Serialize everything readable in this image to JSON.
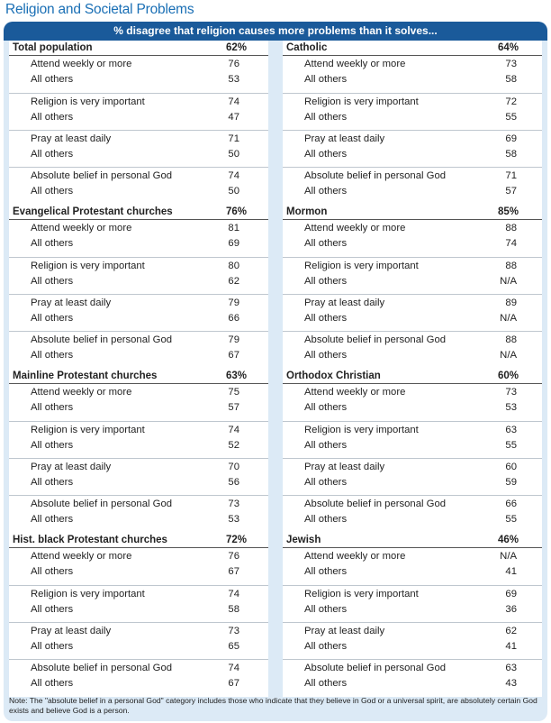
{
  "title": "Religion and Societal Problems",
  "header": "% disagree that religion causes more problems than it solves...",
  "left": [
    {
      "name": "Total population",
      "value": "62%",
      "groups": [
        [
          [
            "Attend weekly or more",
            "76"
          ],
          [
            "All others",
            "53"
          ]
        ],
        [
          [
            "Religion is very important",
            "74"
          ],
          [
            "All others",
            "47"
          ]
        ],
        [
          [
            "Pray at least daily",
            "71"
          ],
          [
            "All others",
            "50"
          ]
        ],
        [
          [
            "Absolute belief in personal God",
            "74"
          ],
          [
            "All others",
            "50"
          ]
        ]
      ]
    },
    {
      "name": "Evangelical Protestant churches",
      "value": "76%",
      "groups": [
        [
          [
            "Attend weekly or more",
            "81"
          ],
          [
            "All others",
            "69"
          ]
        ],
        [
          [
            "Religion is very important",
            "80"
          ],
          [
            "All others",
            "62"
          ]
        ],
        [
          [
            "Pray at least daily",
            "79"
          ],
          [
            "All others",
            "66"
          ]
        ],
        [
          [
            "Absolute belief in personal God",
            "79"
          ],
          [
            "All others",
            "67"
          ]
        ]
      ]
    },
    {
      "name": "Mainline Protestant churches",
      "value": "63%",
      "groups": [
        [
          [
            "Attend weekly or more",
            "75"
          ],
          [
            "All others",
            "57"
          ]
        ],
        [
          [
            "Religion is very important",
            "74"
          ],
          [
            "All others",
            "52"
          ]
        ],
        [
          [
            "Pray at least daily",
            "70"
          ],
          [
            "All others",
            "56"
          ]
        ],
        [
          [
            "Absolute belief in personal God",
            "73"
          ],
          [
            "All others",
            "53"
          ]
        ]
      ]
    },
    {
      "name": "Hist. black Protestant churches",
      "value": "72%",
      "groups": [
        [
          [
            "Attend weekly or more",
            "76"
          ],
          [
            "All others",
            "67"
          ]
        ],
        [
          [
            "Religion is very important",
            "74"
          ],
          [
            "All others",
            "58"
          ]
        ],
        [
          [
            "Pray at least daily",
            "73"
          ],
          [
            "All others",
            "65"
          ]
        ],
        [
          [
            "Absolute belief in personal God",
            "74"
          ],
          [
            "All others",
            "67"
          ]
        ]
      ]
    }
  ],
  "right": [
    {
      "name": "Catholic",
      "value": "64%",
      "groups": [
        [
          [
            "Attend weekly or more",
            "73"
          ],
          [
            "All others",
            "58"
          ]
        ],
        [
          [
            "Religion is very important",
            "72"
          ],
          [
            "All others",
            "55"
          ]
        ],
        [
          [
            "Pray at least daily",
            "69"
          ],
          [
            "All others",
            "58"
          ]
        ],
        [
          [
            "Absolute belief in personal God",
            "71"
          ],
          [
            "All others",
            "57"
          ]
        ]
      ]
    },
    {
      "name": "Mormon",
      "value": "85%",
      "groups": [
        [
          [
            "Attend weekly or more",
            "88"
          ],
          [
            "All others",
            "74"
          ]
        ],
        [
          [
            "Religion is very important",
            "88"
          ],
          [
            "All others",
            "N/A"
          ]
        ],
        [
          [
            "Pray at least daily",
            "89"
          ],
          [
            "All others",
            "N/A"
          ]
        ],
        [
          [
            "Absolute belief in personal God",
            "88"
          ],
          [
            "All others",
            "N/A"
          ]
        ]
      ]
    },
    {
      "name": "Orthodox Christian",
      "value": "60%",
      "groups": [
        [
          [
            "Attend weekly or more",
            "73"
          ],
          [
            "All others",
            "53"
          ]
        ],
        [
          [
            "Religion is very important",
            "63"
          ],
          [
            "All others",
            "55"
          ]
        ],
        [
          [
            "Pray at least daily",
            "60"
          ],
          [
            "All others",
            "59"
          ]
        ],
        [
          [
            "Absolute belief in personal God",
            "66"
          ],
          [
            "All others",
            "55"
          ]
        ]
      ]
    },
    {
      "name": "Jewish",
      "value": "46%",
      "groups": [
        [
          [
            "Attend weekly or more",
            "N/A"
          ],
          [
            "All others",
            "41"
          ]
        ],
        [
          [
            "Religion is very important",
            "69"
          ],
          [
            "All others",
            "36"
          ]
        ],
        [
          [
            "Pray at least daily",
            "62"
          ],
          [
            "All others",
            "41"
          ]
        ],
        [
          [
            "Absolute belief in personal God",
            "63"
          ],
          [
            "All others",
            "43"
          ]
        ]
      ]
    }
  ],
  "note": "Note: The \"absolute belief in a personal God\" category includes those who indicate that they believe in God or a universal spirit, are absolutely certain God exists and believe God is a person."
}
